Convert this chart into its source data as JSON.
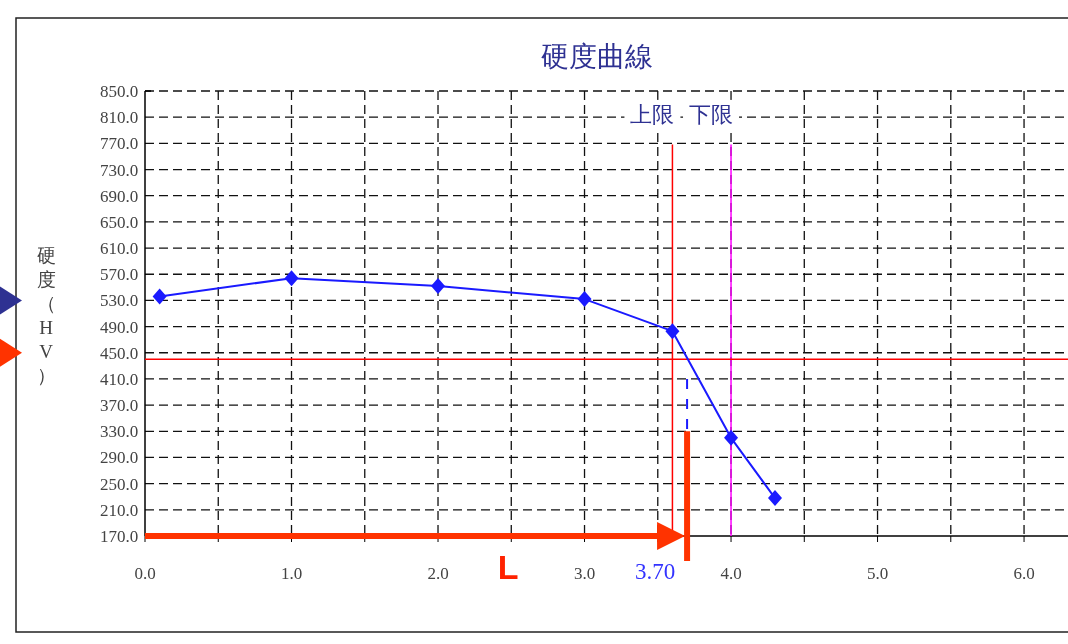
{
  "chart_data": {
    "type": "line",
    "title": "硬度曲線",
    "ylabel": "硬度（HV）",
    "x": [
      0.1,
      1.0,
      2.0,
      3.0,
      3.6,
      4.0,
      4.3
    ],
    "series": [
      {
        "color": "#1a1aff",
        "values": [
          536,
          564,
          552,
          532,
          483,
          320,
          228
        ]
      }
    ],
    "marker": "diamond",
    "line_style": "solid",
    "grid": true,
    "xlim": [
      0,
      6.3
    ],
    "xticks": [
      {
        "value": 0,
        "label": "0.0"
      },
      {
        "value": 0.5,
        "label": null
      },
      {
        "value": 1,
        "label": "1.0"
      },
      {
        "value": 1.5,
        "label": null
      },
      {
        "value": 2,
        "label": "2.0"
      },
      {
        "value": 2.5,
        "label": null
      },
      {
        "value": 3,
        "label": "3.0"
      },
      {
        "value": 3.5,
        "label": null
      },
      {
        "value": 4,
        "label": "4.0"
      },
      {
        "value": 4.5,
        "label": null
      },
      {
        "value": 5,
        "label": "5.0"
      },
      {
        "value": 5.5,
        "label": null
      },
      {
        "value": 6,
        "label": "6.0"
      }
    ],
    "ylim": [
      170,
      850
    ],
    "yticks": [
      {
        "value": 170,
        "label": "170.0"
      },
      {
        "value": 210,
        "label": "210.0"
      },
      {
        "value": 250,
        "label": "250.0"
      },
      {
        "value": 290,
        "label": "290.0"
      },
      {
        "value": 330,
        "label": "330.0"
      },
      {
        "value": 370,
        "label": "370.0"
      },
      {
        "value": 410,
        "label": "410.0"
      },
      {
        "value": 450,
        "label": "450.0"
      },
      {
        "value": 490,
        "label": "490.0"
      },
      {
        "value": 530,
        "label": "530.0"
      },
      {
        "value": 570,
        "label": "570.0"
      },
      {
        "value": 610,
        "label": "610.0"
      },
      {
        "value": 650,
        "label": "650.0"
      },
      {
        "value": 690,
        "label": "690.0"
      },
      {
        "value": 730,
        "label": "730.0"
      },
      {
        "value": 770,
        "label": "770.0"
      },
      {
        "value": 810,
        "label": "810.0"
      },
      {
        "value": 850,
        "label": "850.0"
      }
    ],
    "ref_lines": [
      {
        "axis": "x",
        "value": 3.6,
        "label": "上限",
        "color": "#ff0000"
      },
      {
        "axis": "x",
        "value": 4.0,
        "label": "下限",
        "color": "#ff00ff"
      },
      {
        "axis": "y",
        "value": 440,
        "color": "#ff0000"
      },
      {
        "axis": "x",
        "value": 3.7,
        "label": "3.70",
        "color": "#ff3300"
      }
    ],
    "annotations": [
      "L"
    ]
  }
}
